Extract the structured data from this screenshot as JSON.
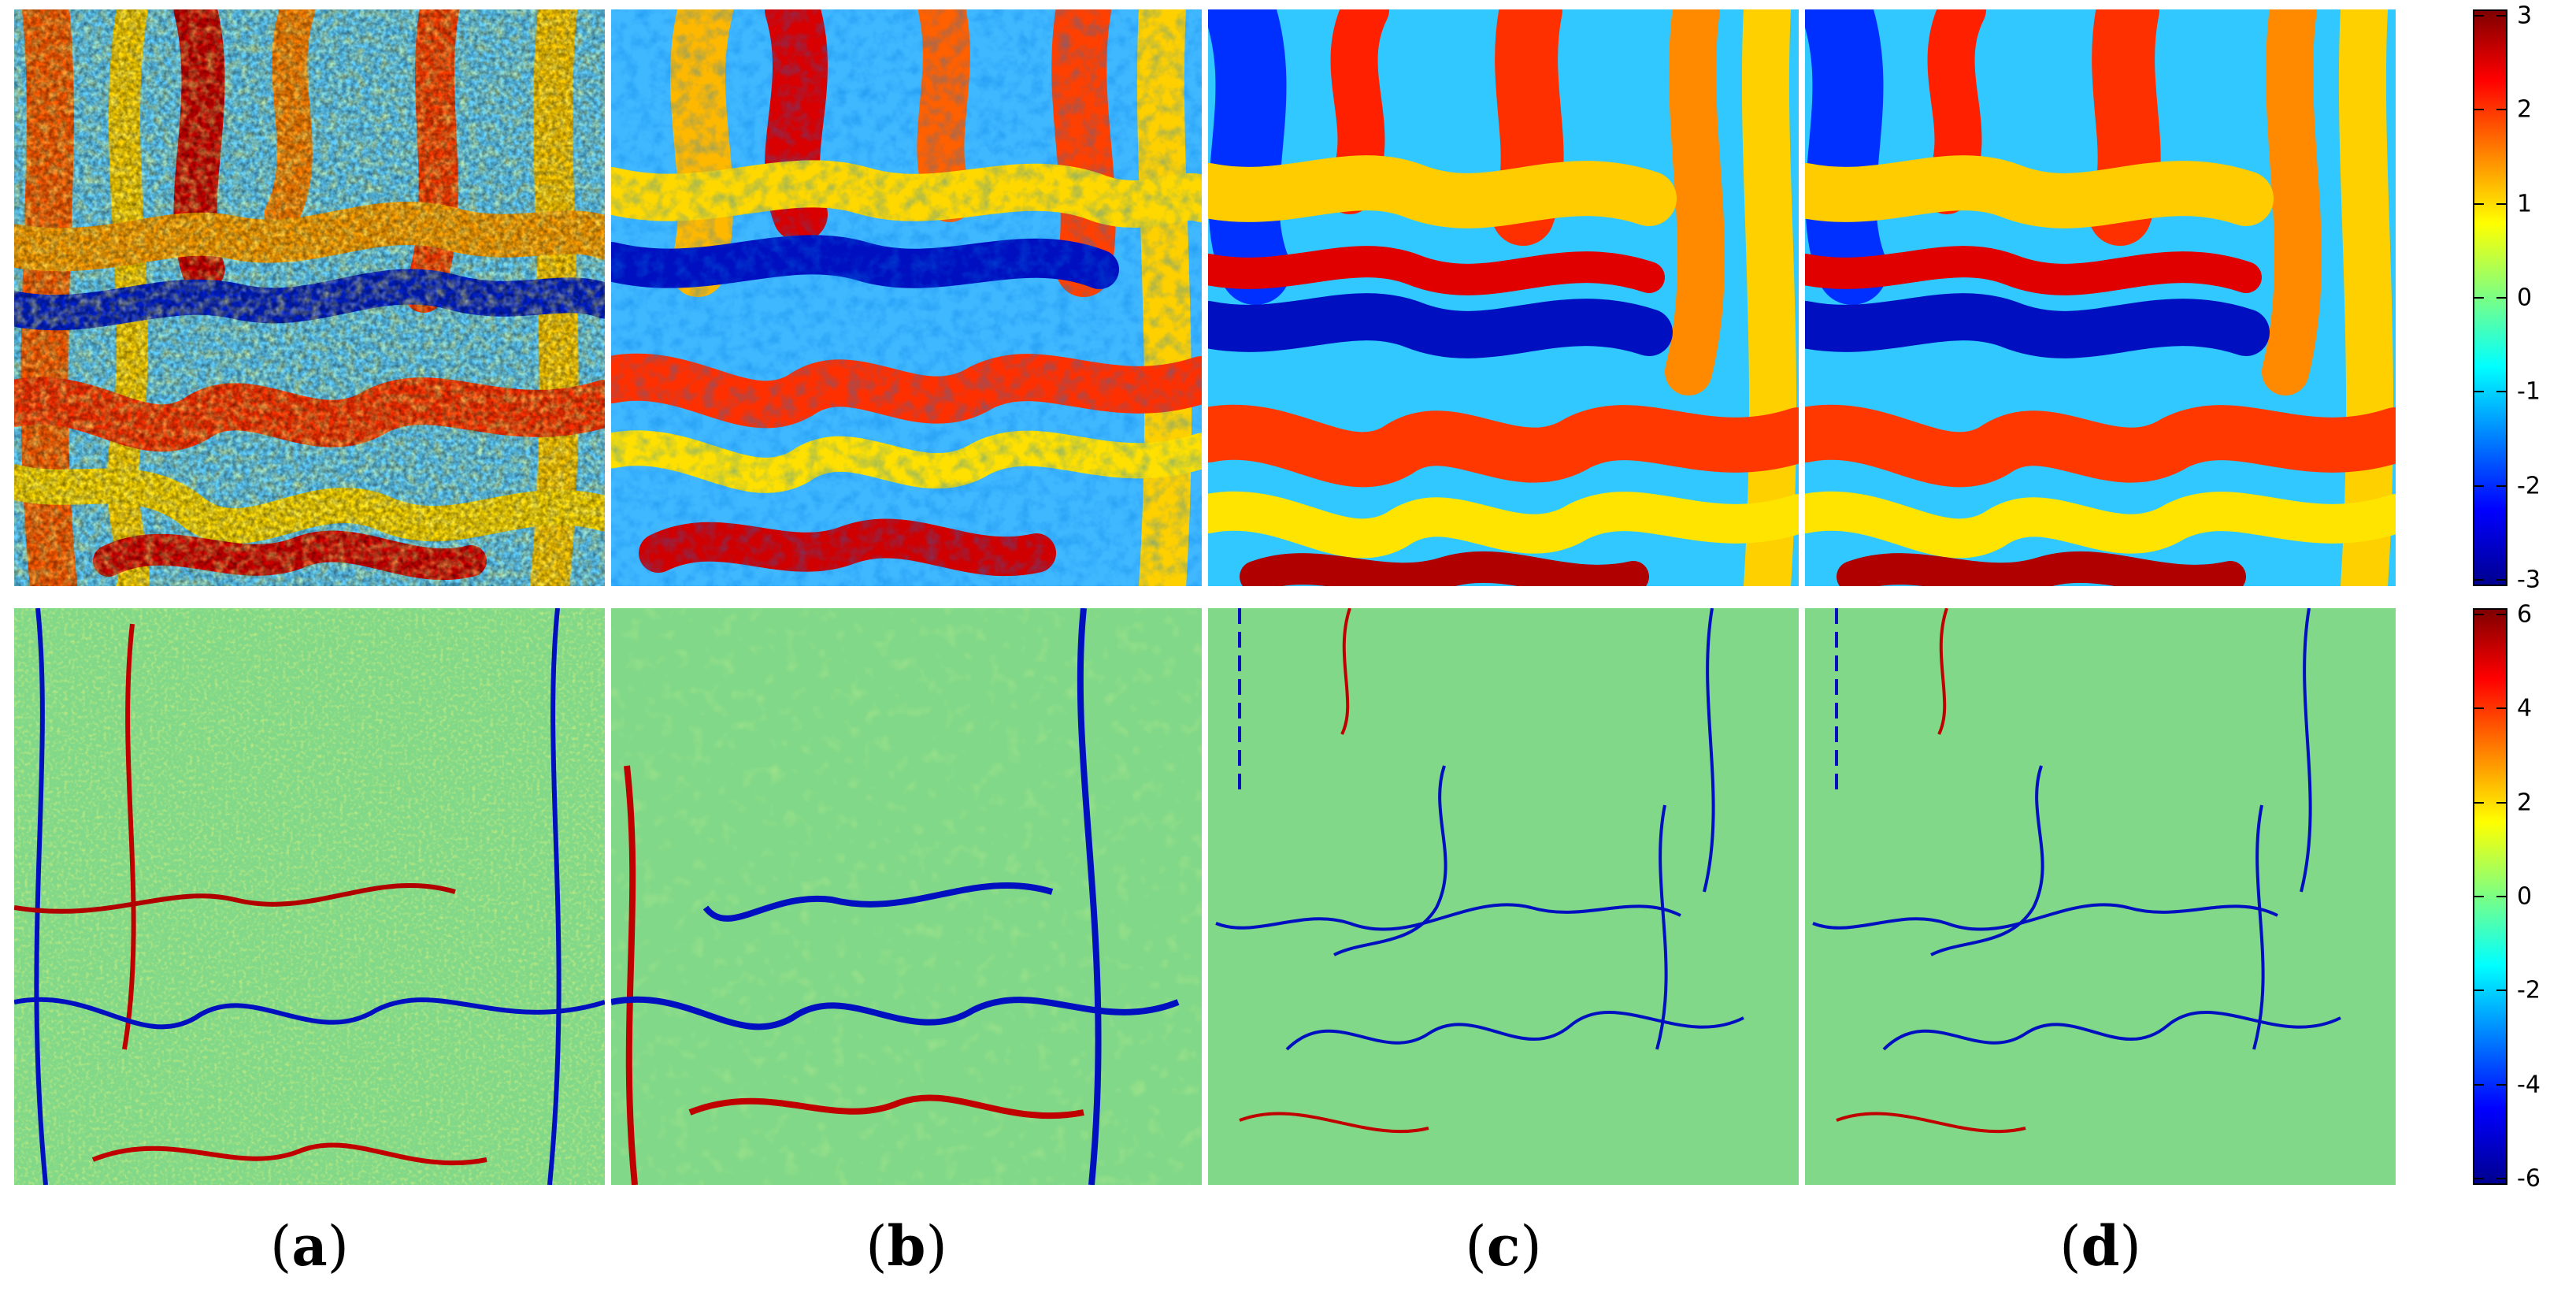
{
  "figure": {
    "captions": [
      "a",
      "b",
      "c",
      "d"
    ],
    "top_row": {
      "panels": [
        {
          "id": "a",
          "style": "noisy-wrapped-phase"
        },
        {
          "id": "b",
          "style": "filtered-wrapped-phase"
        },
        {
          "id": "c",
          "style": "smooth-wrapped-phase"
        },
        {
          "id": "d",
          "style": "smooth-wrapped-phase"
        }
      ],
      "colorbar": {
        "colormap": "jet",
        "min": -3,
        "max": 3,
        "ticks": [
          "3",
          "2",
          "1",
          "0",
          "-1",
          "-2",
          "-3"
        ],
        "tick_values": [
          3,
          2,
          1,
          0,
          -1,
          -2,
          -3
        ]
      }
    },
    "bottom_row": {
      "panels": [
        {
          "id": "a",
          "style": "noisy-residual"
        },
        {
          "id": "b",
          "style": "residual-with-blobs"
        },
        {
          "id": "c",
          "style": "residual-with-thin-lines"
        },
        {
          "id": "d",
          "style": "residual-with-thin-lines"
        }
      ],
      "colorbar": {
        "colormap": "jet",
        "min": -6,
        "max": 6,
        "ticks": [
          "6",
          "4",
          "2",
          "0",
          "-2",
          "-4",
          "-6"
        ],
        "tick_values": [
          6,
          4,
          2,
          0,
          -2,
          -4,
          -6
        ]
      }
    },
    "colors": {
      "jet_dark_red": "#800000",
      "jet_red": "#ff0000",
      "jet_yellow": "#ffff00",
      "jet_cyan": "#00ffff",
      "jet_blue": "#0000ff",
      "jet_dark_blue": "#00008f",
      "residual_background": "#7fd88a"
    }
  }
}
